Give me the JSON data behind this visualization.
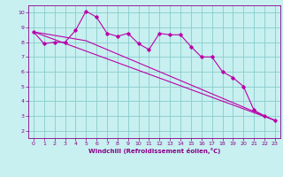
{
  "xlabel": "Windchill (Refroidissement éolien,°C)",
  "ylabel": "",
  "bg_color": "#c8f0f0",
  "line_color": "#bb00aa",
  "grid_color": "#88cccc",
  "text_color": "#880088",
  "xlim": [
    -0.5,
    23.5
  ],
  "ylim": [
    1.5,
    10.5
  ],
  "yticks": [
    2,
    3,
    4,
    5,
    6,
    7,
    8,
    9,
    10
  ],
  "xticks": [
    0,
    1,
    2,
    3,
    4,
    5,
    6,
    7,
    8,
    9,
    10,
    11,
    12,
    13,
    14,
    15,
    16,
    17,
    18,
    19,
    20,
    21,
    22,
    23
  ],
  "series1_x": [
    0,
    1,
    2,
    3,
    4,
    5,
    6,
    7,
    8,
    9,
    10,
    11,
    12,
    13,
    14,
    15,
    16,
    17,
    18,
    19,
    20,
    21,
    22,
    23
  ],
  "series1_y": [
    8.7,
    7.9,
    8.0,
    8.0,
    8.8,
    10.1,
    9.7,
    8.6,
    8.4,
    8.6,
    7.9,
    7.5,
    8.6,
    8.5,
    8.5,
    7.7,
    7.0,
    7.0,
    6.0,
    5.6,
    5.0,
    3.4,
    3.0,
    2.7
  ],
  "series2_x": [
    0,
    23
  ],
  "series2_y": [
    8.7,
    2.7
  ],
  "series3_x": [
    0,
    5,
    23
  ],
  "series3_y": [
    8.7,
    8.1,
    2.7
  ]
}
